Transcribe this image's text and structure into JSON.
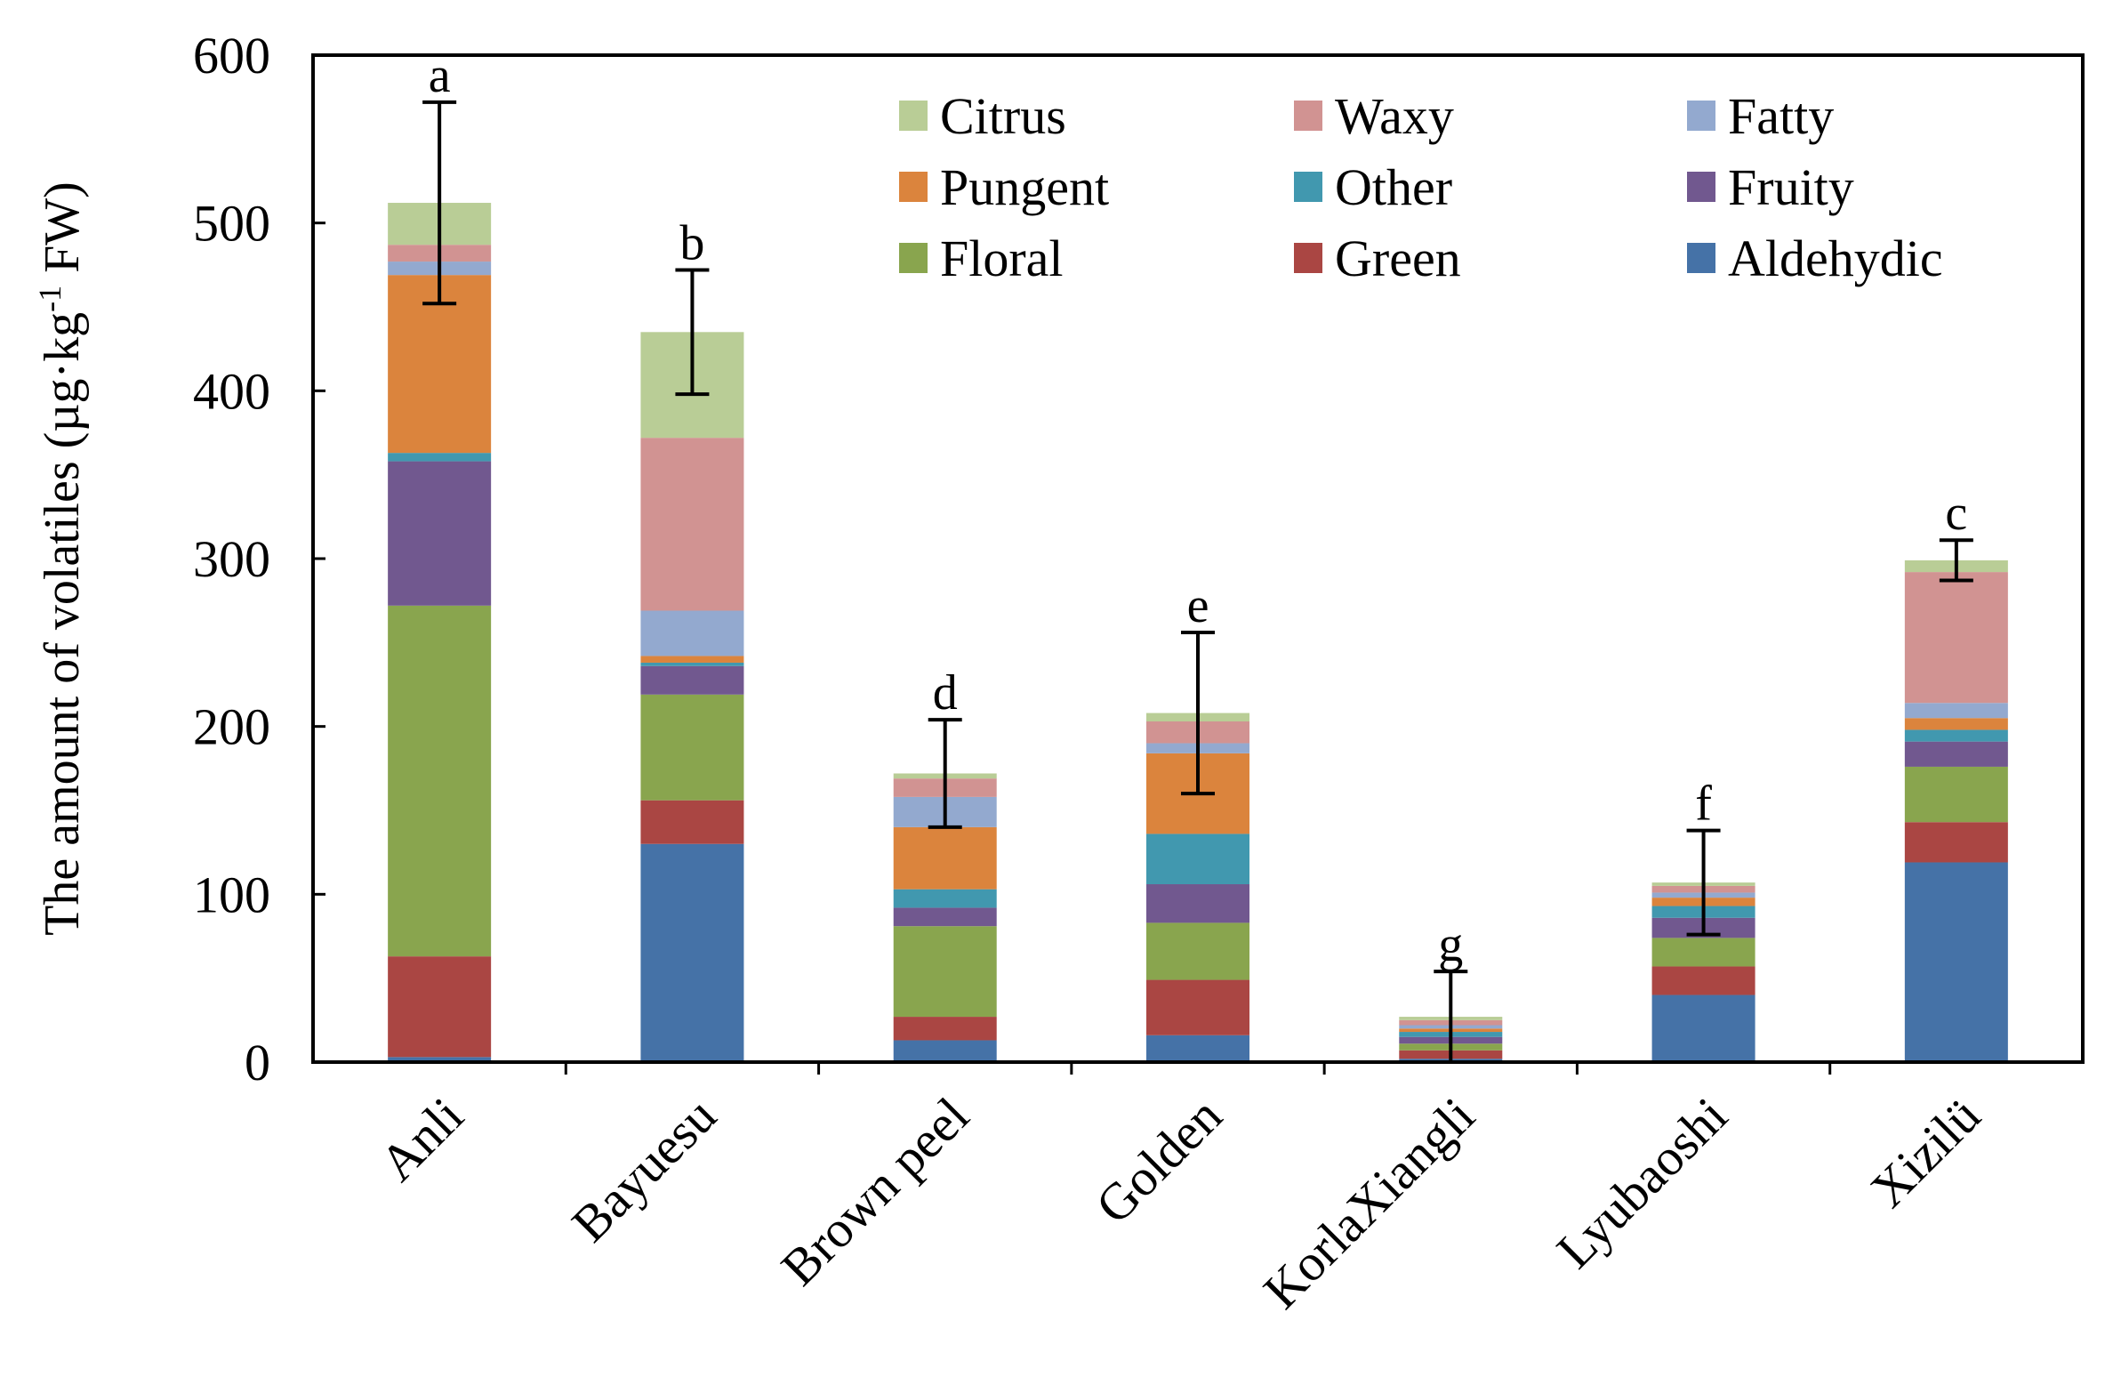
{
  "chart_data": {
    "type": "bar",
    "stacked": true,
    "title": "",
    "xlabel": "",
    "ylabel": "The amount of volatiles (µg·kg",
    "ylabel_sup": "-1",
    "ylabel_end": " FW)",
    "ylim": [
      0,
      600
    ],
    "yticks": [
      0,
      100,
      200,
      300,
      400,
      500,
      600
    ],
    "grid": false,
    "legend_position": "top-right",
    "categories": [
      "Anli",
      "Bayuesu",
      "Brown peel",
      "Golden",
      "KorlaXiangli",
      "Lyubaoshi",
      "Xizilü"
    ],
    "series": [
      {
        "name": "Aldehydic",
        "color": "#4572A7",
        "values": [
          3,
          130,
          13,
          16,
          2,
          40,
          119
        ]
      },
      {
        "name": "Green",
        "color": "#AA4643",
        "values": [
          60,
          26,
          14,
          33,
          5,
          17,
          24
        ]
      },
      {
        "name": "Floral",
        "color": "#89A54E",
        "values": [
          209,
          63,
          54,
          34,
          4,
          17,
          33
        ]
      },
      {
        "name": "Fruity",
        "color": "#71588F",
        "values": [
          86,
          17,
          11,
          23,
          4,
          12,
          15
        ]
      },
      {
        "name": "Other",
        "color": "#4198AF",
        "values": [
          5,
          2,
          11,
          30,
          3,
          7,
          7
        ]
      },
      {
        "name": "Pungent",
        "color": "#DB843D",
        "values": [
          106,
          4,
          37,
          48,
          2,
          5,
          7
        ]
      },
      {
        "name": "Fatty",
        "color": "#93A9CF",
        "values": [
          8,
          27,
          18,
          6,
          2,
          3,
          9
        ]
      },
      {
        "name": "Waxy",
        "color": "#D19392",
        "values": [
          10,
          103,
          11,
          13,
          3,
          4,
          78
        ]
      },
      {
        "name": "Citrus",
        "color": "#B9CD96",
        "values": [
          25,
          63,
          3,
          5,
          2,
          2,
          7
        ]
      }
    ],
    "legend_order": [
      "Citrus",
      "Waxy",
      "Fatty",
      "Pungent",
      "Other",
      "Fruity",
      "Floral",
      "Green",
      "Aldehydic"
    ],
    "totals": [
      512,
      435,
      172,
      208,
      27,
      107,
      299
    ],
    "error": [
      60,
      37,
      32,
      48,
      27,
      31,
      12
    ],
    "significance": [
      "a",
      "b",
      "d",
      "e",
      "g",
      "f",
      "c"
    ]
  }
}
